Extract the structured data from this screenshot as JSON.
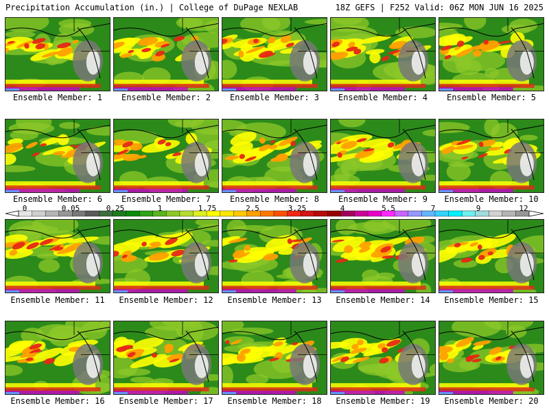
{
  "header": {
    "title": "Precipitation Accumulation (in.) | College of DuPage NEXLAB",
    "run_info": "18Z GEFS | F252 Valid: 06Z MON JUN 16 2025"
  },
  "panels": [
    {
      "label": "Ensemble Member: 1"
    },
    {
      "label": "Ensemble Member: 2"
    },
    {
      "label": "Ensemble Member: 3"
    },
    {
      "label": "Ensemble Member: 4"
    },
    {
      "label": "Ensemble Member: 5"
    },
    {
      "label": "Ensemble Member: 6"
    },
    {
      "label": "Ensemble Member: 7"
    },
    {
      "label": "Ensemble Member: 8"
    },
    {
      "label": "Ensemble Member: 9"
    },
    {
      "label": "Ensemble Member: 10"
    },
    {
      "label": "Ensemble Member: 11"
    },
    {
      "label": "Ensemble Member: 12"
    },
    {
      "label": "Ensemble Member: 13"
    },
    {
      "label": "Ensemble Member: 14"
    },
    {
      "label": "Ensemble Member: 15"
    },
    {
      "label": "Ensemble Member: 16"
    },
    {
      "label": "Ensemble Member: 17"
    },
    {
      "label": "Ensemble Member: 18"
    },
    {
      "label": "Ensemble Member: 19"
    },
    {
      "label": "Ensemble Member: 20"
    }
  ],
  "colorbar": {
    "tick_labels": [
      "0",
      "0.05",
      "0.25",
      "1",
      "1.75",
      "2.5",
      "3.25",
      "4",
      "5.5",
      "7",
      "9",
      "12"
    ],
    "colors": [
      "#e6e6e6",
      "#cfcfcf",
      "#b4b4b4",
      "#969696",
      "#787878",
      "#5a5a5a",
      "#3c6e3c",
      "#1e7a1e",
      "#078a07",
      "#2fa316",
      "#5ab41e",
      "#8cc828",
      "#b4dc32",
      "#dcf028",
      "#ffff00",
      "#ffe600",
      "#ffc800",
      "#ffa000",
      "#ff7800",
      "#ff5000",
      "#f02814",
      "#d21414",
      "#b40a0a",
      "#960000",
      "#a0005a",
      "#c80096",
      "#e600c8",
      "#ff28ff",
      "#c864ff",
      "#9696ff",
      "#64b4ff",
      "#32d2ff",
      "#00f0ff",
      "#6ef0f0",
      "#a0dcdc",
      "#d2d2d2",
      "#b4b4b4",
      "#969696"
    ],
    "map_colors": {
      "ocean": "#2c8a1a",
      "land": "#787878",
      "green_light": "#8cc828",
      "yellow": "#ffff00",
      "orange": "#ffa000",
      "red": "#e62814",
      "magenta": "#c800c8",
      "blue": "#6496ff",
      "white": "#f0f0f0"
    }
  }
}
